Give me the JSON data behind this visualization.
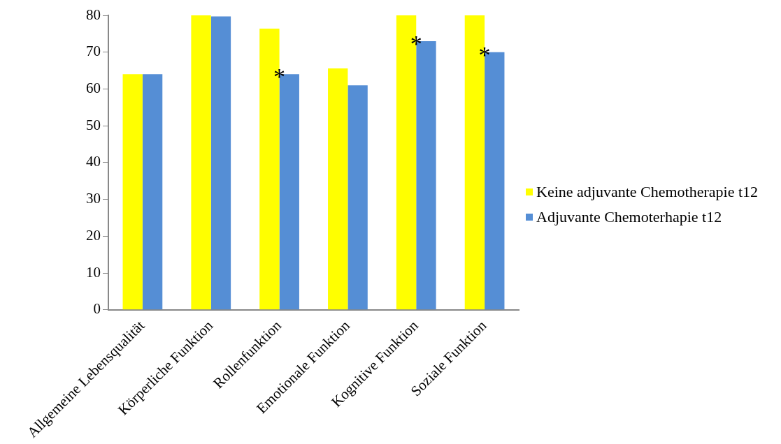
{
  "chart_data": {
    "type": "bar",
    "categories": [
      "Allgemeine Lebensqualität",
      "Körperliche Funktion",
      "Rollenfunktion",
      "Emotionale Funktion",
      "Kognitive Funktion",
      "Soziale Funktion"
    ],
    "series": [
      {
        "name": "Keine adjuvante Chemotherapie t12",
        "color": "#ffff00",
        "values": [
          64,
          80,
          76.4,
          65.6,
          80,
          80
        ]
      },
      {
        "name": "Adjuvante Chemoterhapie t12",
        "color": "#558ed5",
        "values": [
          64,
          79.7,
          64,
          61,
          73,
          70
        ]
      }
    ],
    "ylim": [
      0,
      80
    ],
    "yticks": [
      0,
      10,
      20,
      30,
      40,
      50,
      60,
      70,
      80
    ],
    "grid": false,
    "legend": "right",
    "annotations": [
      {
        "text": "*",
        "x": "Rollenfunktion",
        "y": 64
      },
      {
        "text": "*",
        "x": "Kognitive Funktion",
        "y": 73
      },
      {
        "text": "*",
        "x": "Soziale Funktion",
        "y": 70
      }
    ]
  }
}
